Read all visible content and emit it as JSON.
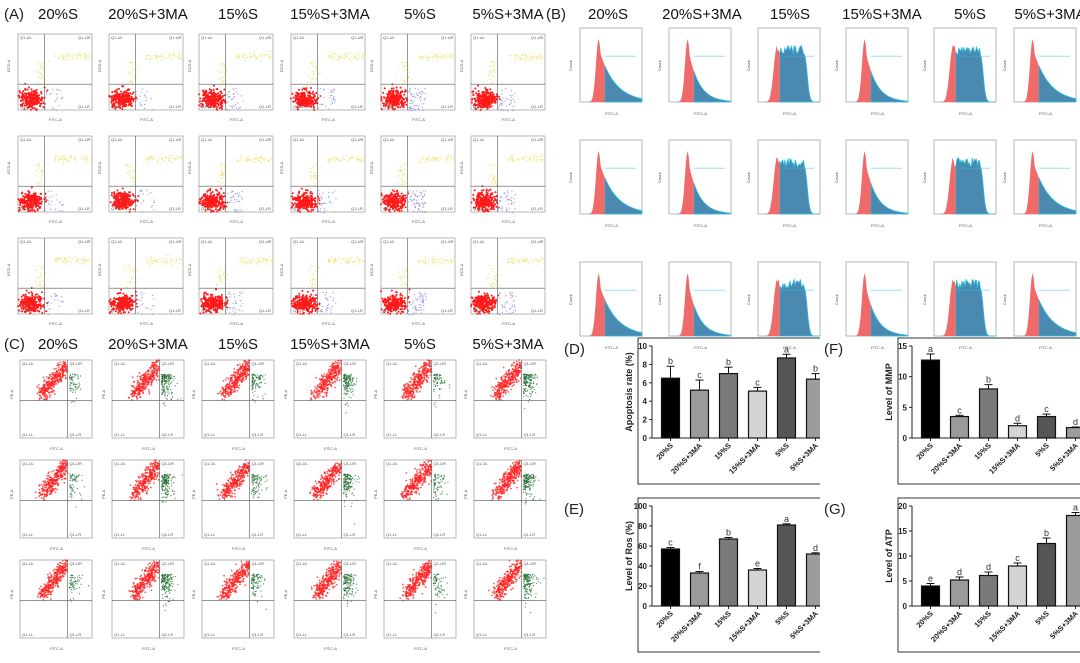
{
  "groups": [
    "20%S",
    "20%S+3MA",
    "15%S",
    "15%S+3MA",
    "5%S",
    "5%S+3MA"
  ],
  "panels": {
    "A": {
      "label": "(A)",
      "type": "flow-dotplot-apoptosis",
      "x_axis": "FITC-A",
      "y_axis": "ECD-A",
      "quadrants": [
        "Q1-UL",
        "Q1-UR",
        "Q1-LL",
        "Q1-LR"
      ],
      "replicates": 3
    },
    "B": {
      "label": "(B)",
      "type": "flow-histogram",
      "x_axis": "FITC-A",
      "y_axis": "Count",
      "replicates": 3
    },
    "C": {
      "label": "(C)",
      "type": "flow-dotplot-mmp",
      "x_axis": "FITC-A",
      "y_axis": "PE-A",
      "quadrants": [
        "Q1-UL",
        "Q1-UR",
        "Q1-LL",
        "Q1-LR"
      ],
      "replicates": 3
    }
  },
  "colors": {
    "apoptosis_live": "#ff1a1a",
    "apoptosis_late": "#e8e060",
    "apoptosis_early": "#6a6ad8",
    "hist_red": "#f06a6a",
    "hist_blue": "#4a8ab0",
    "hist_cyan": "#30c0e8",
    "mmp_red": "#ff2020",
    "mmp_green": "#1a6a2a",
    "bars": [
      "#000000",
      "#9a9a9a",
      "#7a7a7a",
      "#d4d4d4",
      "#555555",
      "#9c9c9c"
    ]
  },
  "chart_data": [
    {
      "id": "D",
      "label": "(D)",
      "type": "bar",
      "categories": [
        "20%S",
        "20%S+3MA",
        "15%S",
        "15%S+3MA",
        "5%S",
        "5%S+3MA"
      ],
      "values": [
        6.5,
        5.2,
        7.0,
        5.1,
        8.7,
        6.4
      ],
      "errors": [
        1.3,
        1.1,
        0.7,
        0.4,
        0.4,
        0.6
      ],
      "letters": [
        "b",
        "c",
        "b",
        "c",
        "a",
        "b"
      ],
      "ylabel": "Apoptosis rate (%)",
      "xlabel": "",
      "ylim": [
        0,
        10
      ],
      "yticks": [
        0,
        2,
        4,
        6,
        8,
        10
      ]
    },
    {
      "id": "E",
      "label": "(E)",
      "type": "bar",
      "categories": [
        "20%S",
        "20%S+3MA",
        "15%S",
        "15%S+3MA",
        "5%S",
        "5%S+3MA"
      ],
      "values": [
        57,
        33,
        67,
        36,
        81,
        52
      ],
      "errors": [
        1.5,
        1.5,
        1.5,
        1.5,
        1.2,
        1.2
      ],
      "letters": [
        "c",
        "f",
        "b",
        "e",
        "a",
        "d"
      ],
      "ylabel": "Level of Ros (%)",
      "xlabel": "",
      "ylim": [
        0,
        100
      ],
      "yticks": [
        0,
        20,
        40,
        60,
        80,
        100
      ]
    },
    {
      "id": "F",
      "label": "(F)",
      "type": "bar",
      "categories": [
        "20%S",
        "20%S+3MA",
        "15%S",
        "15%S+3MA",
        "5%S",
        "5%S+3MA"
      ],
      "values": [
        12.7,
        3.5,
        8.0,
        2.0,
        3.5,
        1.7
      ],
      "errors": [
        1.0,
        0.2,
        0.7,
        0.4,
        0.4,
        0.1
      ],
      "letters": [
        "a",
        "c",
        "b",
        "d",
        "c",
        "d"
      ],
      "ylabel": "Level of MMP",
      "xlabel": "",
      "ylim": [
        0,
        15
      ],
      "yticks": [
        0,
        5,
        10,
        15
      ]
    },
    {
      "id": "G",
      "label": "(G)",
      "type": "bar",
      "categories": [
        "20%S",
        "20%S+3MA",
        "15%S",
        "15%S+3MA",
        "5%S",
        "5%S+3MA"
      ],
      "values": [
        4.0,
        5.2,
        6.1,
        8.0,
        12.5,
        18.1
      ],
      "errors": [
        0.5,
        0.6,
        0.7,
        0.6,
        1.1,
        0.6
      ],
      "letters": [
        "e",
        "d",
        "d",
        "c",
        "b",
        "a"
      ],
      "ylabel": "Level of ATP",
      "xlabel": "",
      "ylim": [
        0,
        20
      ],
      "yticks": [
        0,
        5,
        10,
        15,
        20
      ]
    }
  ]
}
